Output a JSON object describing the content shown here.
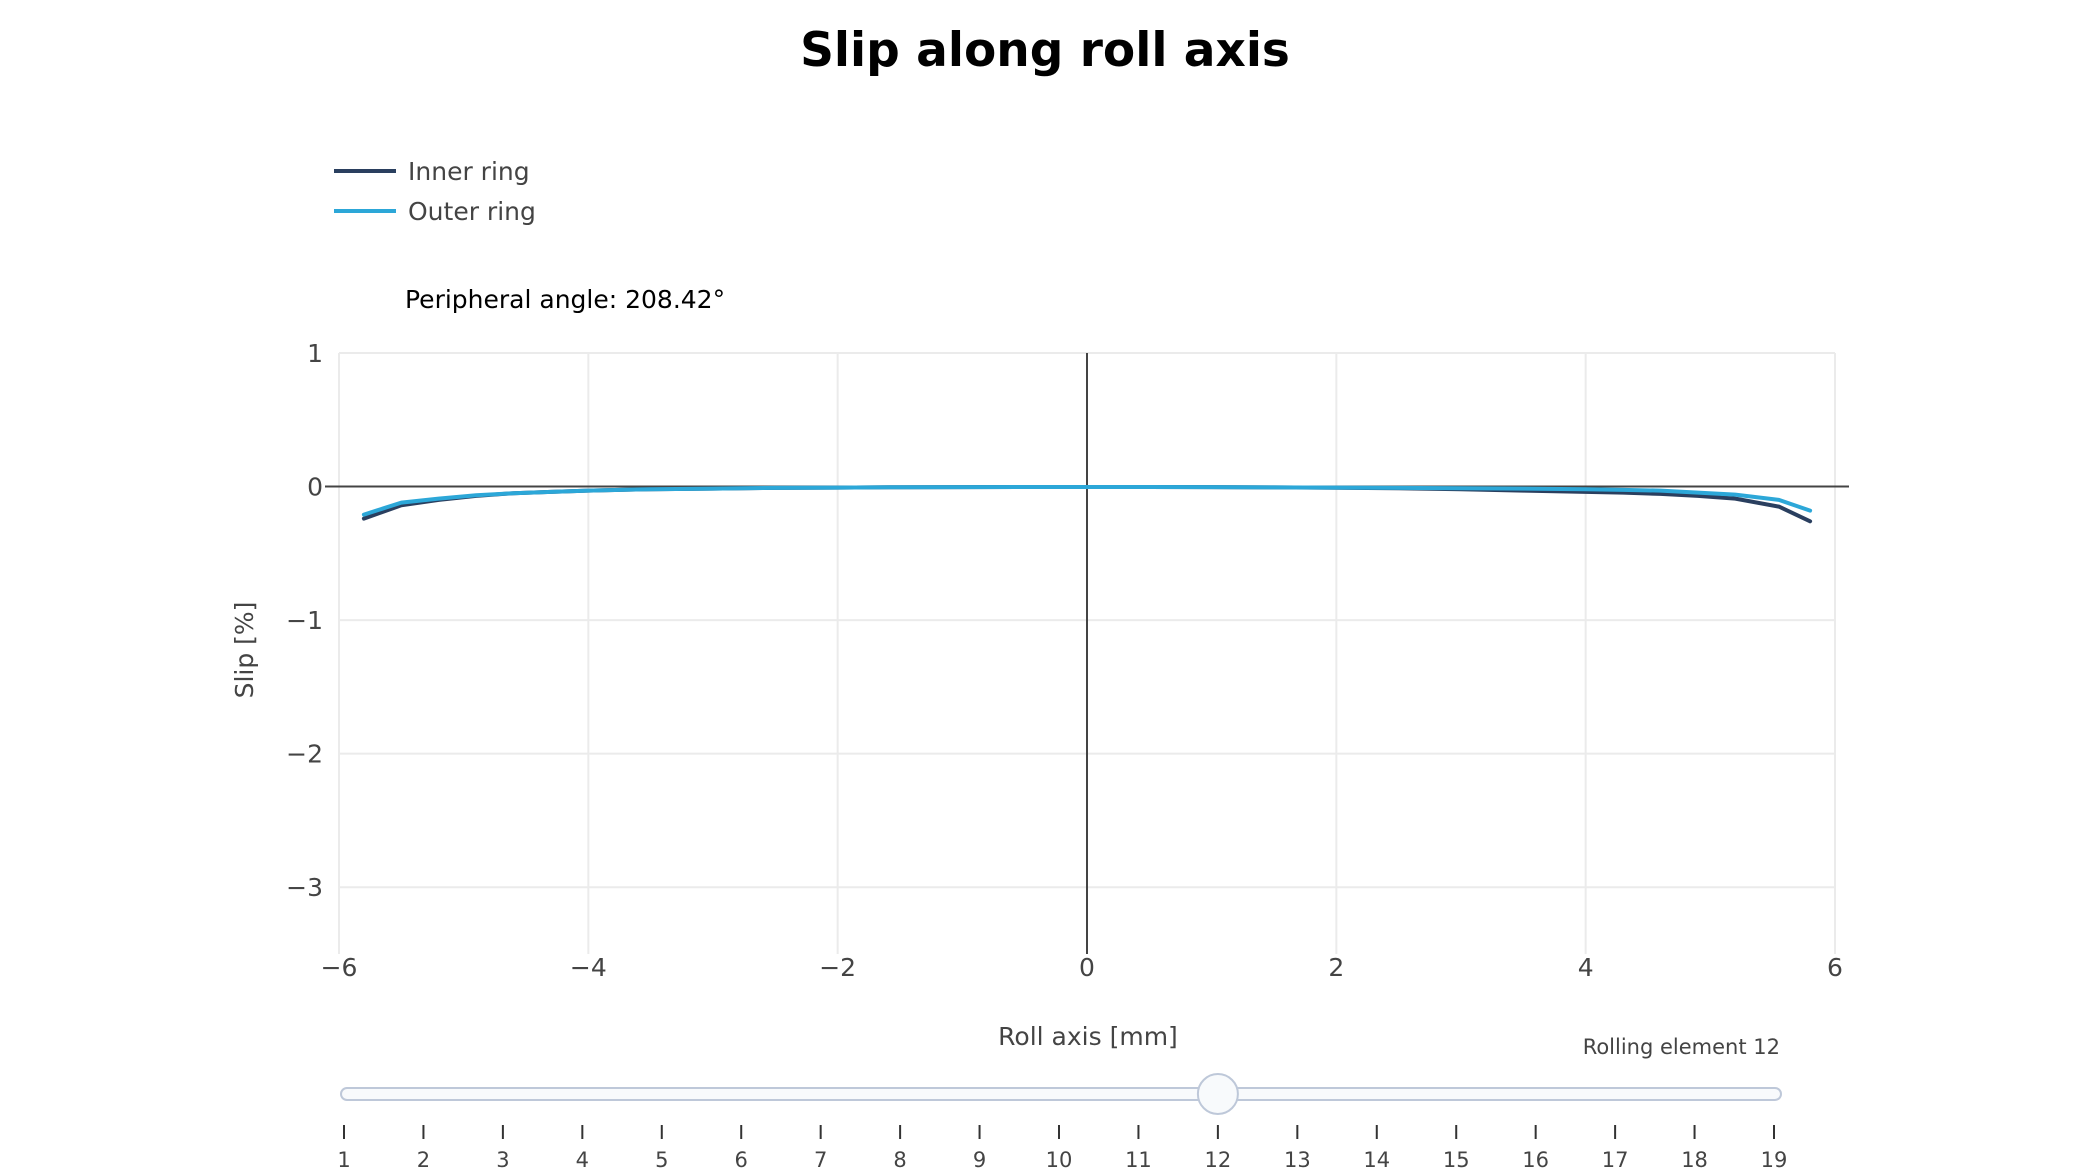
{
  "chart_data": {
    "type": "line",
    "title": "Slip along roll axis",
    "xlabel": "Roll axis [mm]",
    "ylabel": "Slip [%]",
    "xlim": [
      -6,
      6
    ],
    "ylim": [
      -3.5,
      1
    ],
    "x_ticks": [
      -6,
      -4,
      -2,
      0,
      2,
      4,
      6
    ],
    "y_ticks": [
      1,
      0,
      -1,
      -2,
      -3
    ],
    "x_tick_labels": [
      "−6",
      "−4",
      "−2",
      "0",
      "2",
      "4",
      "6"
    ],
    "y_tick_labels": [
      "1",
      "0",
      "−1",
      "−2",
      "−3"
    ],
    "grid": true,
    "legend_position": "top-left",
    "annotation": "Peripheral angle: 208.42°",
    "series": [
      {
        "name": "Inner ring",
        "color": "#2a3f5f",
        "x": [
          -5.8,
          -5.5,
          -5.2,
          -4.9,
          -4.6,
          -4.3,
          -4.0,
          -3.5,
          -3.0,
          -2.5,
          -2.0,
          -1.5,
          -1.0,
          -0.5,
          0.0,
          0.5,
          1.0,
          1.5,
          2.0,
          2.5,
          3.0,
          3.5,
          4.0,
          4.3,
          4.6,
          4.9,
          5.2,
          5.55,
          5.8
        ],
        "y": [
          -0.24,
          -0.14,
          -0.1,
          -0.07,
          -0.05,
          -0.04,
          -0.03,
          -0.02,
          -0.015,
          -0.01,
          -0.008,
          -0.005,
          -0.004,
          -0.003,
          -0.003,
          -0.003,
          -0.004,
          -0.006,
          -0.009,
          -0.013,
          -0.02,
          -0.03,
          -0.04,
          -0.045,
          -0.055,
          -0.07,
          -0.09,
          -0.15,
          -0.26
        ]
      },
      {
        "name": "Outer ring",
        "color": "#2ca7d8",
        "x": [
          -5.8,
          -5.5,
          -5.2,
          -4.9,
          -4.6,
          -4.3,
          -4.0,
          -3.5,
          -3.0,
          -2.5,
          -2.0,
          -1.5,
          -1.0,
          -0.5,
          0.0,
          0.5,
          1.0,
          1.5,
          2.0,
          2.5,
          3.0,
          3.5,
          4.0,
          4.3,
          4.6,
          4.9,
          5.2,
          5.55,
          5.8
        ],
        "y": [
          -0.21,
          -0.12,
          -0.09,
          -0.065,
          -0.05,
          -0.04,
          -0.03,
          -0.02,
          -0.015,
          -0.01,
          -0.008,
          -0.005,
          -0.004,
          -0.003,
          -0.003,
          -0.003,
          -0.004,
          -0.006,
          -0.008,
          -0.01,
          -0.012,
          -0.015,
          -0.02,
          -0.025,
          -0.03,
          -0.045,
          -0.06,
          -0.1,
          -0.18
        ]
      }
    ]
  },
  "slider": {
    "current_label": "Rolling element 12",
    "current_value": 12,
    "min": 1,
    "max": 19,
    "tick_labels": [
      "1",
      "2",
      "3",
      "4",
      "5",
      "6",
      "7",
      "8",
      "9",
      "10",
      "11",
      "12",
      "13",
      "14",
      "15",
      "16",
      "17",
      "18",
      "19"
    ]
  }
}
